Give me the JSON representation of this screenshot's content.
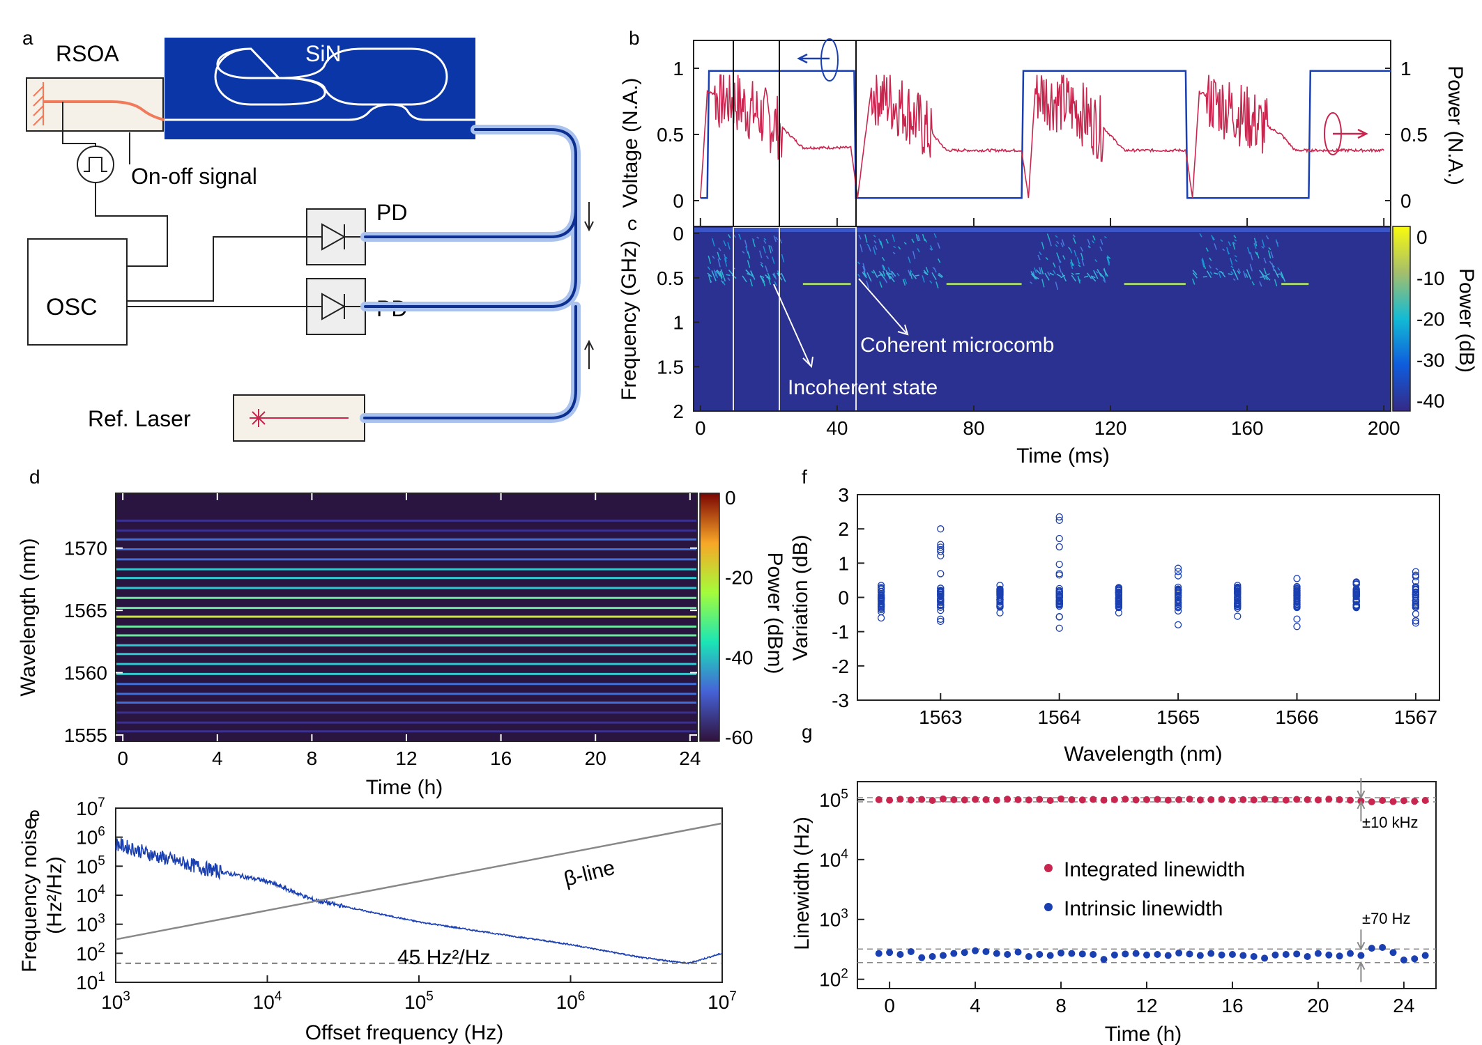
{
  "panel_labels": {
    "a": "a",
    "b": "b",
    "c": "c",
    "d": "d",
    "e": "e",
    "f": "f",
    "g": "g"
  },
  "schematic": {
    "rsoa": "RSOA",
    "sin": "SiN",
    "onoff": "On-off signal",
    "pd1": "PD",
    "pd2": "PD",
    "osc": "OSC",
    "ref_laser": "Ref. Laser"
  },
  "colors": {
    "blue_trace": "#1a3fb0",
    "red_trace": "#c8264e",
    "chip_blue": "#0a36a8",
    "fiber_light": "#a9c3ee",
    "gain_orange": "#f07a5a",
    "heatmap_bg": "#2a3190",
    "dark_map_bg": "#2a1540"
  },
  "panel_b": {
    "ylabel_left": "Voltage (N.A.)",
    "ylabel_right": "Power (N.A.)",
    "yticks_left": [
      "0",
      "0.5",
      "1"
    ],
    "yticks_right": [
      "0",
      "0.5",
      "1"
    ]
  },
  "panel_c": {
    "ylabel": "Frequency (GHz)",
    "cbar_label": "Power (dB)",
    "xlabel": "Time (ms)",
    "xticks": [
      "0",
      "40",
      "80",
      "120",
      "160",
      "200"
    ],
    "yticks": [
      "0",
      "0.5",
      "1",
      "1.5",
      "2"
    ],
    "cbar_ticks": [
      "0",
      "-10",
      "-20",
      "-30",
      "-40"
    ],
    "annot_coherent": "Coherent microcomb",
    "annot_incoherent": "Incoherent state"
  },
  "panel_d": {
    "ylabel": "Wavelength (nm)",
    "xlabel": "Time (h)",
    "cbar_label": "Power (dBm)",
    "xticks": [
      "0",
      "4",
      "8",
      "12",
      "16",
      "20",
      "24"
    ],
    "yticks": [
      "1555",
      "1560",
      "1565",
      "1570"
    ],
    "cbar_ticks": [
      "0",
      "-20",
      "-40",
      "-60"
    ]
  },
  "panel_e": {
    "ylabel_line1": "Frequency noise",
    "ylabel_line2": "(Hz²/Hz)",
    "xlabel": "Offset frequency (Hz)",
    "yticks": [
      [
        "10",
        "1"
      ],
      [
        "10",
        "2"
      ],
      [
        "10",
        "3"
      ],
      [
        "10",
        "4"
      ],
      [
        "10",
        "5"
      ],
      [
        "10",
        "6"
      ],
      [
        "10",
        "7"
      ]
    ],
    "xticks": [
      [
        "10",
        "3"
      ],
      [
        "10",
        "4"
      ],
      [
        "10",
        "5"
      ],
      [
        "10",
        "6"
      ],
      [
        "10",
        "7"
      ]
    ],
    "beta_label": "β-line",
    "floor_label": "45 Hz²/Hz"
  },
  "panel_f": {
    "ylabel": "Variation (dB)",
    "xlabel": "Wavelength (nm)",
    "yticks": [
      "3",
      "2",
      "1",
      "0",
      "-1",
      "-2",
      "-3"
    ],
    "xticks": [
      "1563",
      "1564",
      "1565",
      "1566",
      "1567"
    ]
  },
  "panel_g": {
    "ylabel": "Linewidth (Hz)",
    "xlabel": "Time (h)",
    "xticks": [
      "0",
      "4",
      "8",
      "12",
      "16",
      "20",
      "24"
    ],
    "yticks": [
      [
        "10",
        "2"
      ],
      [
        "10",
        "3"
      ],
      [
        "10",
        "4"
      ],
      [
        "10",
        "5"
      ]
    ],
    "legend_integrated": "Integrated linewidth",
    "legend_intrinsic": "Intrinsic linewidth",
    "annot_khz": "±10 kHz",
    "annot_hz": "±70 Hz"
  },
  "chart_data": [
    {
      "type": "line",
      "panel": "b",
      "xlabel": "Time (ms)",
      "ylabel": "Voltage (N.A.)",
      "y2label": "Power (N.A.)",
      "xlim": [
        -2,
        202
      ],
      "ylim": [
        0,
        1
      ],
      "series": [
        {
          "values_desc": "square on-off voltage",
          "x": [
            0,
            2,
            2.5,
            45,
            45.5,
            94,
            94.5,
            142,
            142.5,
            178,
            178.5,
            200
          ],
          "y": [
            0.02,
            0.02,
            0.98,
            0.98,
            0.02,
            0.02,
            0.98,
            0.98,
            0.02,
            0.02,
            0.98,
            0.98
          ]
        },
        {
          "values_desc": "comb power",
          "x": [
            0,
            2,
            10,
            22,
            30,
            44,
            46,
            50,
            60,
            68,
            72,
            94,
            96,
            98,
            110,
            118,
            124,
            142,
            144,
            146,
            158,
            170,
            174,
            178
          ],
          "y": [
            0.02,
            0.82,
            0.78,
            0.6,
            0.4,
            0.4,
            0.02,
            0.85,
            0.72,
            0.5,
            0.38,
            0.38,
            0.02,
            0.85,
            0.72,
            0.55,
            0.38,
            0.38,
            0.02,
            0.82,
            0.68,
            0.5,
            0.38,
            0.38
          ]
        }
      ]
    },
    {
      "type": "heatmap",
      "panel": "c",
      "xlabel": "Time (ms)",
      "ylabel": "Frequency (GHz)",
      "xlim": [
        -2,
        202
      ],
      "ylim": [
        2,
        0
      ],
      "clim": [
        -40,
        0
      ],
      "series": [
        {
          "name": "",
          "x": [
            30,
            44,
            72,
            94,
            124,
            142,
            170,
            178
          ],
          "y": [
            0.57,
            0.57,
            0.57,
            0.57,
            0.57,
            0.57,
            0.57,
            0.57
          ]
        }
      ]
    },
    {
      "type": "heatmap",
      "panel": "d",
      "xlabel": "Time (h)",
      "ylabel": "Wavelength (nm)",
      "xlim": [
        -0.3,
        24.3
      ],
      "ylim": [
        1554.5,
        1574.4
      ],
      "clim": [
        -60,
        0
      ],
      "comb_lines_nm": [
        1555.3,
        1556.0,
        1556.8,
        1557.6,
        1558.3,
        1559.1,
        1559.9,
        1560.7,
        1561.5,
        1562.2,
        1563.0,
        1563.7,
        1564.5,
        1565.2,
        1566.0,
        1566.8,
        1567.6,
        1568.3,
        1569.1,
        1569.9,
        1570.7,
        1571.4,
        1572.2
      ],
      "comb_power_dbm": [
        -56,
        -54,
        -52,
        -50,
        -48,
        -45,
        -42,
        -40,
        -36,
        -34,
        -30,
        -25,
        -18,
        -26,
        -30,
        -34,
        -38,
        -42,
        -45,
        -48,
        -51,
        -54,
        -57
      ]
    },
    {
      "type": "line",
      "panel": "e",
      "xlabel": "Offset frequency (Hz)",
      "ylabel": "Frequency noise (Hz²/Hz)",
      "xscale": "log",
      "yscale": "log",
      "xlim": [
        1000,
        10000000
      ],
      "ylim": [
        10,
        10000000
      ],
      "series": [
        {
          "name": "",
          "x": [
            1000,
            2000,
            4000,
            10000,
            20000,
            50000,
            100000,
            300000,
            1000000,
            3000000,
            6000000,
            10000000
          ],
          "y": [
            600000,
            200000,
            80000,
            30000,
            7000,
            2500,
            1200,
            500,
            200,
            70,
            45,
            100
          ]
        },
        {
          "name": "β-line",
          "x": [
            1000,
            10000000
          ],
          "y": [
            300,
            3000000
          ]
        },
        {
          "name": "45 Hz²/Hz",
          "x": [
            1000,
            10000000
          ],
          "y": [
            45,
            45
          ]
        }
      ]
    },
    {
      "type": "scatter",
      "panel": "f",
      "xlabel": "Wavelength (nm)",
      "ylabel": "Variation (dB)",
      "xlim": [
        1562.3,
        1567.2
      ],
      "ylim": [
        -3,
        3
      ],
      "groups": [
        {
          "x": 1562.5,
          "min": -0.6,
          "max": 0.35
        },
        {
          "x": 1563.0,
          "min": -0.7,
          "max": 2.0
        },
        {
          "x": 1563.5,
          "min": -0.45,
          "max": 0.35
        },
        {
          "x": 1564.0,
          "min": -0.9,
          "max": 2.35
        },
        {
          "x": 1564.5,
          "min": -0.45,
          "max": 0.15
        },
        {
          "x": 1565.0,
          "min": -0.8,
          "max": 0.85
        },
        {
          "x": 1565.5,
          "min": -0.55,
          "max": 0.35
        },
        {
          "x": 1566.0,
          "min": -0.85,
          "max": 0.55
        },
        {
          "x": 1566.5,
          "min": -0.3,
          "max": 0.45
        },
        {
          "x": 1567.0,
          "min": -0.75,
          "max": 0.75
        }
      ]
    },
    {
      "type": "scatter",
      "panel": "g",
      "xlabel": "Time (h)",
      "ylabel": "Linewidth (Hz)",
      "yscale": "log",
      "xlim": [
        -1.5,
        25.5
      ],
      "ylim": [
        70,
        200000
      ],
      "series": [
        {
          "name": "Integrated linewidth",
          "x": [
            -0.5,
            0,
            0.5,
            1,
            1.5,
            2,
            2.5,
            3,
            3.5,
            4,
            4.5,
            5,
            5.5,
            6,
            6.5,
            7,
            7.5,
            8,
            8.5,
            9,
            9.5,
            10,
            10.5,
            11,
            11.5,
            12,
            12.5,
            13,
            13.5,
            14,
            14.5,
            15,
            15.5,
            16,
            16.5,
            17,
            17.5,
            18,
            18.5,
            19,
            19.5,
            20,
            20.5,
            21,
            21.5,
            22,
            22.5,
            23,
            23.5,
            24,
            24.5,
            25
          ],
          "y": [
            100000,
            98000,
            102000,
            99000,
            101000,
            97000,
            103000,
            100000,
            99000,
            101000,
            100000,
            98000,
            102000,
            100000,
            99000,
            101000,
            97000,
            103000,
            100000,
            99000,
            101000,
            98000,
            100000,
            102000,
            99000,
            100000,
            101000,
            98000,
            100000,
            102000,
            99000,
            100000,
            101000,
            98000,
            100000,
            99000,
            102000,
            100000,
            98000,
            101000,
            100000,
            99000,
            102000,
            100000,
            98000,
            95000,
            92000,
            97000,
            93000,
            96000,
            94000,
            97000
          ]
        },
        {
          "name": "Intrinsic linewidth",
          "x": [
            -0.5,
            0,
            0.5,
            1,
            1.5,
            2,
            2.5,
            3,
            3.5,
            4,
            4.5,
            5,
            5.5,
            6,
            6.5,
            7,
            7.5,
            8,
            8.5,
            9,
            9.5,
            10,
            10.5,
            11,
            11.5,
            12,
            12.5,
            13,
            13.5,
            14,
            14.5,
            15,
            15.5,
            16,
            16.5,
            17,
            17.5,
            18,
            18.5,
            19,
            19.5,
            20,
            20.5,
            21,
            21.5,
            22,
            22.5,
            23,
            23.5,
            24,
            24.5,
            25
          ],
          "y": [
            270,
            280,
            260,
            290,
            230,
            240,
            250,
            270,
            280,
            300,
            290,
            270,
            260,
            285,
            240,
            260,
            250,
            275,
            270,
            265,
            260,
            215,
            255,
            265,
            270,
            255,
            260,
            250,
            275,
            265,
            250,
            270,
            255,
            260,
            250,
            240,
            225,
            255,
            260,
            265,
            240,
            270,
            255,
            245,
            270,
            250,
            330,
            340,
            280,
            210,
            220,
            250
          ]
        }
      ]
    }
  ]
}
